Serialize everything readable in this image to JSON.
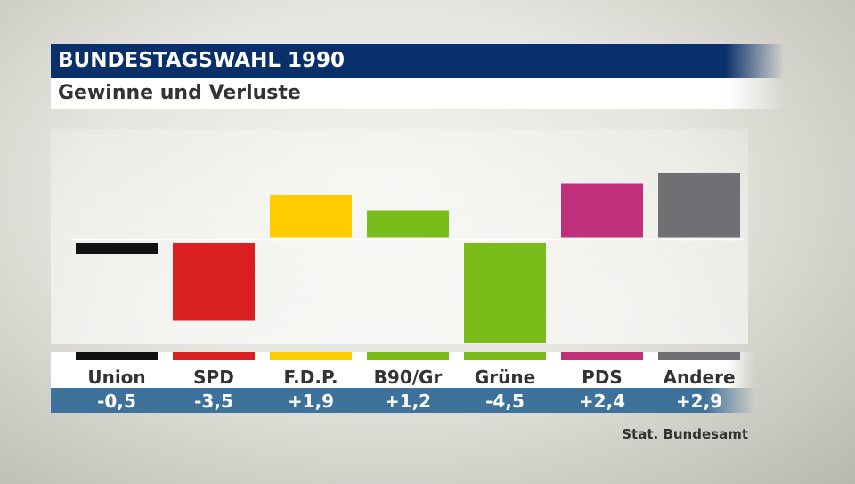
{
  "header": {
    "title": "BUNDESTAGSWAHL 1990",
    "subtitle": "Gewinne und Verluste"
  },
  "source": "Stat. Bundesamt",
  "chart_data": {
    "type": "bar",
    "categories": [
      "Union",
      "SPD",
      "F.D.P.",
      "B90/Gr",
      "Grüne",
      "PDS",
      "Andere"
    ],
    "values": [
      -0.5,
      -3.5,
      1.9,
      1.2,
      -4.5,
      2.4,
      2.9
    ],
    "value_labels": [
      "-0,5",
      "-3,5",
      "+1,9",
      "+1,2",
      "-4,5",
      "+2,4",
      "+2,9"
    ],
    "colors": [
      "#111111",
      "#d91f1f",
      "#ffcc00",
      "#7abd1b",
      "#7abd1b",
      "#c0307a",
      "#6f7073"
    ],
    "ylim": [
      -4.9,
      4.9
    ],
    "grid": false
  }
}
